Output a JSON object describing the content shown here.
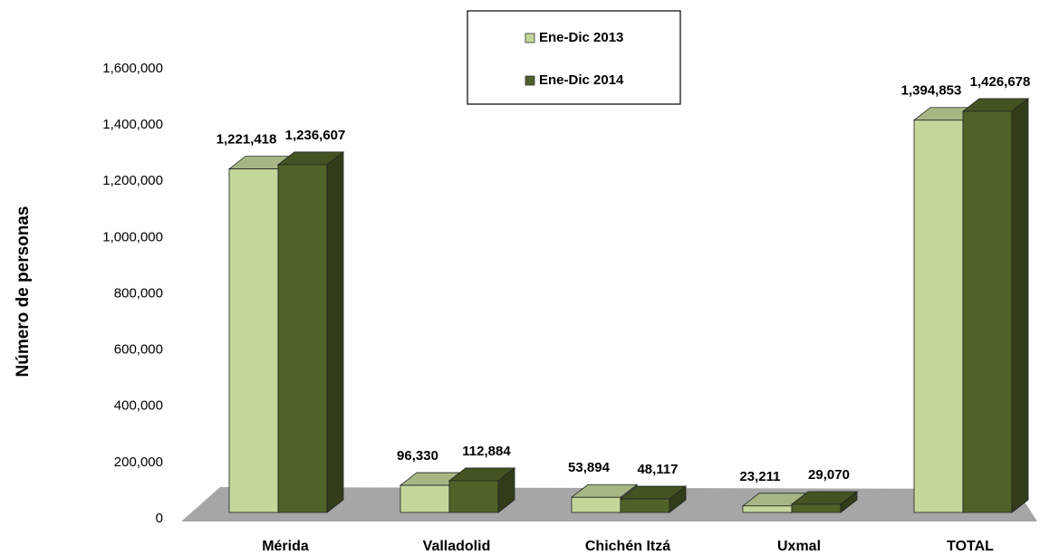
{
  "chart_data": {
    "type": "bar3d",
    "y_label": "Número de personas",
    "categories": [
      "Mérida",
      "Valladolid",
      "Chichén Itzá",
      "Uxmal",
      "TOTAL"
    ],
    "series": [
      {
        "name": "Ene-Dic 2013",
        "color": "#c4d79b",
        "values": [
          1221418,
          96330,
          53894,
          23211,
          1394853
        ],
        "value_labels": [
          "1,221,418",
          "96,330",
          "53,894",
          "23,211",
          "1,394,853"
        ]
      },
      {
        "name": "Ene-Dic 2014",
        "color": "#4f6228",
        "values": [
          1236607,
          112884,
          48117,
          29070,
          1426678
        ],
        "value_labels": [
          "1,236,607",
          "112,884",
          "48,117",
          "29,070",
          "1,426,678"
        ]
      }
    ],
    "ylim": [
      0,
      1600000
    ],
    "yticks": [
      0,
      {
        "value": 200000,
        "label": "200,000"
      },
      {
        "value": 400000,
        "label": "400,000"
      },
      {
        "value": 600000,
        "label": "600,000"
      },
      {
        "value": 800000,
        "label": "800,000"
      },
      {
        "value": 1000000,
        "label": "1,000,000"
      },
      {
        "value": 1200000,
        "label": "1,200,000"
      },
      {
        "value": 1400000,
        "label": "1,400,000"
      },
      {
        "value": 1600000,
        "label": "1,600,000"
      }
    ],
    "legend": "top"
  }
}
